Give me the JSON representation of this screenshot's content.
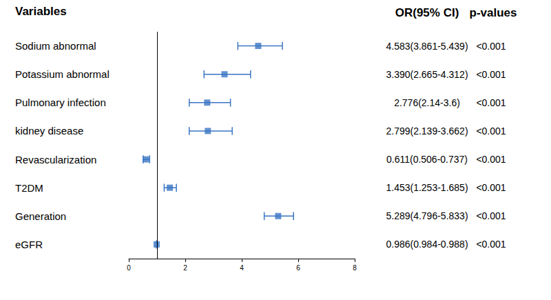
{
  "chart_data": {
    "type": "forest",
    "orientation": "horizontal",
    "headers": [
      "Variables",
      "OR(95% CI)",
      "p-values"
    ],
    "categories": [
      "Sodium abnormal",
      "Potassium abnormal",
      "Pulmonary infection",
      "kidney disease",
      "Revascularization",
      "T2DM",
      "Generation",
      "eGFR"
    ],
    "values": [
      4.583,
      3.39,
      2.776,
      2.799,
      0.611,
      1.453,
      5.289,
      0.986
    ],
    "ci_low": [
      3.861,
      2.665,
      2.14,
      2.139,
      0.506,
      1.253,
      4.796,
      0.984
    ],
    "ci_high": [
      5.439,
      4.312,
      3.6,
      3.662,
      0.737,
      1.685,
      5.833,
      0.988
    ],
    "value_labels": [
      "4.583(3.861-5.439)",
      "3.390(2.665-4.312)",
      "2.776(2.14-3.6)",
      "2.799(2.139-3.662)",
      "0.611(0.506-0.737)",
      "1.453(1.253-1.685)",
      "5.289(4.796-5.833)",
      "0.986(0.984-0.988)"
    ],
    "p_values": [
      "<0.001",
      "<0.001",
      "<0.001",
      "<0.001",
      "<0.001",
      "<0.001",
      "<0.001",
      "<0.001"
    ],
    "reference": 1,
    "xlim": [
      0,
      8
    ],
    "xticks": [
      0,
      2,
      4,
      6,
      8
    ],
    "color": "#3a75c4",
    "marker": "square",
    "grid": false
  }
}
